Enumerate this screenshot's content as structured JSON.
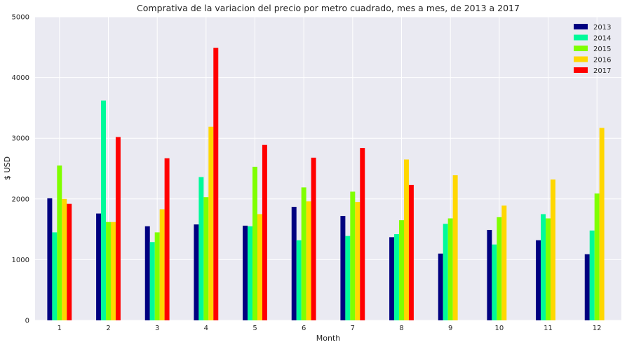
{
  "chart_data": {
    "type": "bar",
    "title": "Comprativa de la variacion del precio por metro cuadrado, mes a mes, de 2013 a 2017",
    "xlabel": "Month",
    "ylabel": "$ USD",
    "ylim": [
      0,
      5000
    ],
    "yticks": [
      "0",
      "1000",
      "2000",
      "3000",
      "4000",
      "5000"
    ],
    "categories": [
      "1",
      "2",
      "3",
      "4",
      "5",
      "6",
      "7",
      "8",
      "9",
      "10",
      "11",
      "12"
    ],
    "grid": true,
    "legend_position": "top-right",
    "series": [
      {
        "name": "2013",
        "color": "#000080",
        "values": [
          2010,
          1760,
          1550,
          1580,
          1560,
          1870,
          1720,
          1370,
          1100,
          1490,
          1320,
          1090
        ]
      },
      {
        "name": "2014",
        "color": "#00fa9a",
        "values": [
          1450,
          3620,
          1290,
          2360,
          1550,
          1320,
          1390,
          1420,
          1590,
          1250,
          1750,
          1480
        ]
      },
      {
        "name": "2015",
        "color": "#7fff00",
        "values": [
          2550,
          1620,
          1450,
          2030,
          2530,
          2190,
          2120,
          1650,
          1680,
          1700,
          1680,
          2090
        ]
      },
      {
        "name": "2016",
        "color": "#ffd700",
        "values": [
          2000,
          1620,
          1830,
          3190,
          1750,
          1960,
          1950,
          2650,
          2390,
          1890,
          2320,
          3170
        ]
      },
      {
        "name": "2017",
        "color": "#ff0000",
        "values": [
          1920,
          3020,
          2670,
          4490,
          2890,
          2680,
          2840,
          2230,
          null,
          null,
          null,
          null
        ]
      }
    ]
  }
}
